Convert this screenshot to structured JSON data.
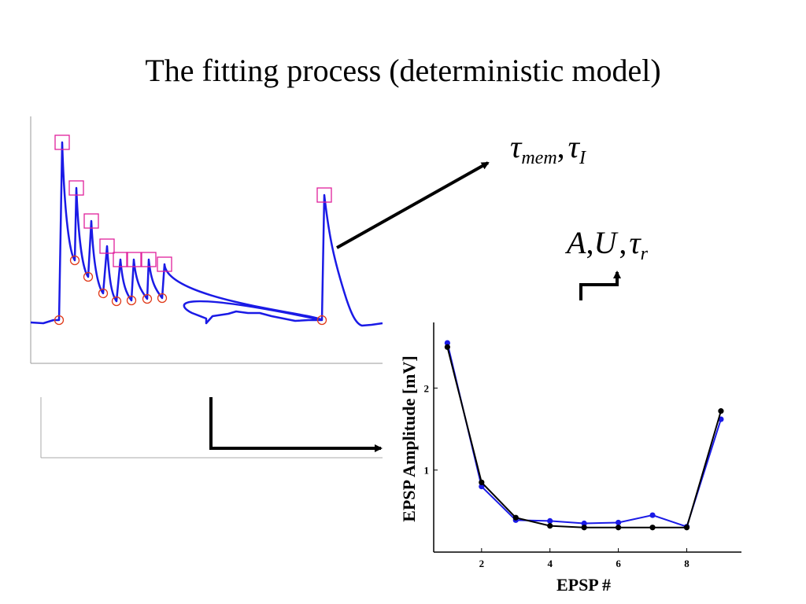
{
  "slide": {
    "title": "The fitting process (deterministic model)"
  },
  "params": {
    "tau_symbol": "τ",
    "mem_sub": "mem",
    "comma": ",",
    "I_sub": "I",
    "A": "A",
    "U": "U",
    "r_sub": "r"
  },
  "colors": {
    "trace": "#1a1ae6",
    "peak_marker": "#e0209c",
    "trough_marker": "#e03a1a",
    "measured": "#1a1ae6",
    "model": "#000000"
  },
  "trace": {
    "peaks": [
      {
        "t": 79,
        "v": 181
      },
      {
        "t": 97,
        "v": 239
      },
      {
        "t": 116,
        "v": 281
      },
      {
        "t": 136,
        "v": 313
      },
      {
        "t": 153,
        "v": 330
      },
      {
        "t": 170,
        "v": 330
      },
      {
        "t": 189,
        "v": 330
      },
      {
        "t": 209,
        "v": 336
      },
      {
        "t": 412,
        "v": 248
      }
    ],
    "troughs": [
      {
        "t": 75,
        "v": 407
      },
      {
        "t": 95,
        "v": 331
      },
      {
        "t": 112,
        "v": 352
      },
      {
        "t": 131,
        "v": 373
      },
      {
        "t": 148,
        "v": 383
      },
      {
        "t": 167,
        "v": 382
      },
      {
        "t": 187,
        "v": 380
      },
      {
        "t": 206,
        "v": 379
      },
      {
        "t": 409,
        "v": 407
      }
    ]
  },
  "chart_data": {
    "type": "line",
    "xlabel": "EPSP #",
    "ylabel": "EPSP Amplitude [mV]",
    "xlim": [
      0.6,
      9.6
    ],
    "ylim": [
      0,
      2.8
    ],
    "xticks": [
      2,
      4,
      6,
      8
    ],
    "yticks": [
      1,
      2
    ],
    "x": [
      1,
      2,
      3,
      4,
      5,
      6,
      7,
      8,
      9
    ],
    "series": [
      {
        "values": [
          2.55,
          0.8,
          0.39,
          0.38,
          0.35,
          0.36,
          0.45,
          0.31,
          1.62
        ],
        "color": "#1a1ae6"
      },
      {
        "values": [
          2.5,
          0.85,
          0.42,
          0.32,
          0.3,
          0.3,
          0.3,
          0.3,
          1.72
        ],
        "color": "#000000"
      }
    ]
  }
}
